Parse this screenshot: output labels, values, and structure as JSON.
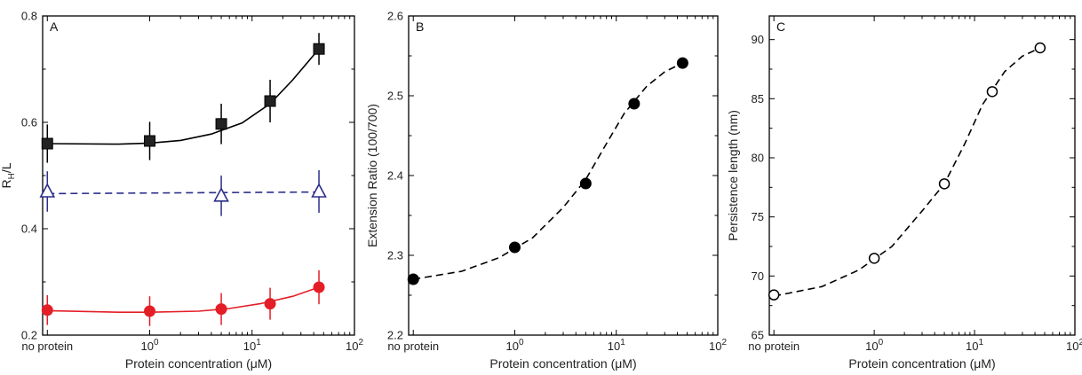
{
  "chart_data": [
    {
      "type": "scatter",
      "panel_label": "A",
      "xlabel": "Protein concentration (μM)",
      "ylabel": "R",
      "ylabel_sub": "H",
      "ylabel_suffix": "/L",
      "x_scale": "log",
      "xlim": [
        0.09,
        100
      ],
      "ylim": [
        0.2,
        0.8
      ],
      "x_ticks": [
        {
          "value": 0.1,
          "label": "no protein"
        },
        {
          "value": 1,
          "label": "10",
          "sup": "0"
        },
        {
          "value": 10,
          "label": "10",
          "sup": "1"
        },
        {
          "value": 100,
          "label": "10",
          "sup": "2"
        }
      ],
      "y_ticks": [
        {
          "value": 0.2,
          "label": "0.2"
        },
        {
          "value": 0.4,
          "label": "0.4"
        },
        {
          "value": 0.6,
          "label": "0.6"
        },
        {
          "value": 0.8,
          "label": "0.8"
        }
      ],
      "series": [
        {
          "marker": "square",
          "fill": "#222222",
          "color": "#000000",
          "line": "solid",
          "x": [
            0.1,
            1,
            5,
            15,
            45
          ],
          "y": [
            0.56,
            0.565,
            0.597,
            0.64,
            0.738
          ],
          "err": [
            0.036,
            0.036,
            0.038,
            0.04,
            0.03
          ],
          "fit": [
            [
              0.1,
              0.56
            ],
            [
              0.5,
              0.559
            ],
            [
              1,
              0.561
            ],
            [
              2,
              0.566
            ],
            [
              4,
              0.578
            ],
            [
              8,
              0.599
            ],
            [
              15,
              0.635
            ],
            [
              25,
              0.68
            ],
            [
              45,
              0.738
            ]
          ]
        },
        {
          "marker": "triangle-open",
          "fill": "#ffffff",
          "color": "#2b2e8a",
          "line": "dashed",
          "x": [
            0.1,
            5,
            45
          ],
          "y": [
            0.47,
            0.462,
            0.47
          ],
          "err": [
            0.038,
            0.038,
            0.04
          ],
          "fit": [
            [
              0.1,
              0.466
            ],
            [
              45,
              0.469
            ]
          ]
        },
        {
          "marker": "circle",
          "fill": "#e41e26",
          "color": "#e41e26",
          "line": "solid",
          "x": [
            0.1,
            1,
            5,
            15,
            45
          ],
          "y": [
            0.247,
            0.245,
            0.249,
            0.259,
            0.29
          ],
          "err": [
            0.028,
            0.028,
            0.03,
            0.03,
            0.032
          ],
          "fit": [
            [
              0.1,
              0.246
            ],
            [
              0.5,
              0.243
            ],
            [
              1,
              0.243
            ],
            [
              3,
              0.245
            ],
            [
              6,
              0.25
            ],
            [
              12,
              0.259
            ],
            [
              25,
              0.273
            ],
            [
              45,
              0.29
            ]
          ]
        }
      ]
    },
    {
      "type": "scatter",
      "panel_label": "B",
      "xlabel": "Protein concentration (μM)",
      "ylabel": "Extension Ratio (100/700)",
      "x_scale": "log",
      "xlim": [
        0.09,
        100
      ],
      "ylim": [
        2.2,
        2.6
      ],
      "x_ticks": [
        {
          "value": 0.1,
          "label": "no protein"
        },
        {
          "value": 1,
          "label": "10",
          "sup": "0"
        },
        {
          "value": 10,
          "label": "10",
          "sup": "1"
        },
        {
          "value": 100,
          "label": "10",
          "sup": "2"
        }
      ],
      "y_ticks": [
        {
          "value": 2.2,
          "label": "2.2"
        },
        {
          "value": 2.3,
          "label": "2.3"
        },
        {
          "value": 2.4,
          "label": "2.4"
        },
        {
          "value": 2.5,
          "label": "2.5"
        },
        {
          "value": 2.6,
          "label": "2.6"
        }
      ],
      "series": [
        {
          "marker": "circle",
          "fill": "#000000",
          "color": "#000000",
          "line": "dashed",
          "x": [
            0.1,
            1,
            5,
            15,
            45
          ],
          "y": [
            2.27,
            2.31,
            2.39,
            2.49,
            2.541
          ],
          "err": [],
          "fit": [
            [
              0.1,
              2.27
            ],
            [
              0.3,
              2.28
            ],
            [
              0.7,
              2.297
            ],
            [
              1.5,
              2.322
            ],
            [
              3,
              2.36
            ],
            [
              5,
              2.395
            ],
            [
              8,
              2.44
            ],
            [
              12,
              2.478
            ],
            [
              20,
              2.512
            ],
            [
              30,
              2.53
            ],
            [
              45,
              2.541
            ]
          ]
        }
      ]
    },
    {
      "type": "scatter",
      "panel_label": "C",
      "xlabel": "Protein concentration (μM)",
      "ylabel": "Persistence length (nm)",
      "x_scale": "log",
      "xlim": [
        0.09,
        100
      ],
      "ylim": [
        65,
        92
      ],
      "x_ticks": [
        {
          "value": 0.1,
          "label": "no protein"
        },
        {
          "value": 1,
          "label": "10",
          "sup": "0"
        },
        {
          "value": 10,
          "label": "10",
          "sup": "1"
        },
        {
          "value": 100,
          "label": "10",
          "sup": "2"
        }
      ],
      "y_ticks": [
        {
          "value": 65,
          "label": "65"
        },
        {
          "value": 70,
          "label": "70"
        },
        {
          "value": 75,
          "label": "75"
        },
        {
          "value": 80,
          "label": "80"
        },
        {
          "value": 85,
          "label": "85"
        },
        {
          "value": 90,
          "label": "90"
        }
      ],
      "series": [
        {
          "marker": "circle-open",
          "fill": "#ffffff",
          "color": "#000000",
          "line": "dashed",
          "x": [
            0.1,
            1,
            5,
            15,
            45
          ],
          "y": [
            68.4,
            71.5,
            77.8,
            85.6,
            89.3
          ],
          "err": [],
          "fit": [
            [
              0.1,
              68.3
            ],
            [
              0.3,
              69.1
            ],
            [
              0.7,
              70.5
            ],
            [
              1.5,
              72.5
            ],
            [
              3,
              75.5
            ],
            [
              5,
              77.8
            ],
            [
              8,
              81.2
            ],
            [
              12,
              84.5
            ],
            [
              20,
              87.3
            ],
            [
              30,
              88.6
            ],
            [
              45,
              89.3
            ]
          ]
        }
      ]
    }
  ]
}
